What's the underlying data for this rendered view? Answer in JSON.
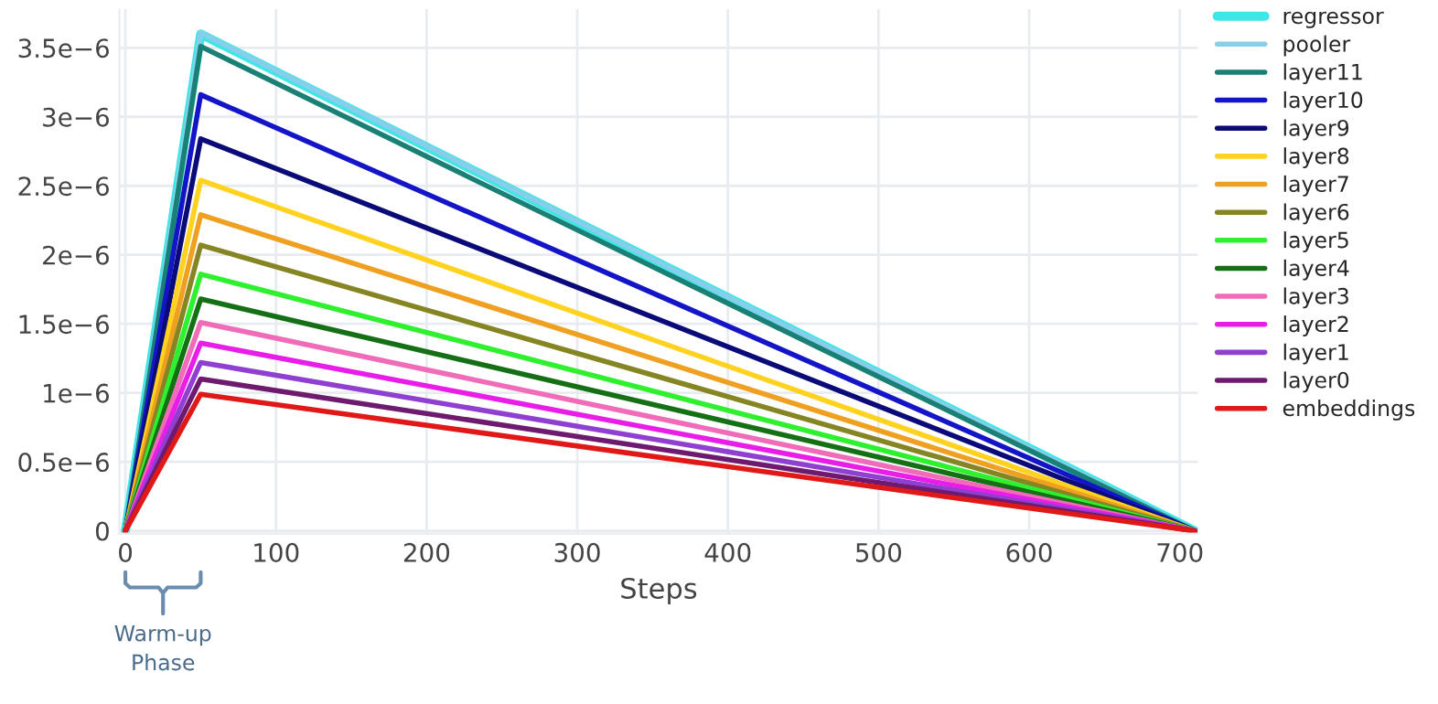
{
  "chart_data": {
    "type": "line",
    "xlabel": "Steps",
    "x": [
      0,
      50,
      710
    ],
    "xlim": [
      -4,
      712
    ],
    "xticks": [
      0,
      100,
      200,
      300,
      400,
      500,
      600,
      700
    ],
    "ylim": [
      -2e-08,
      3.78e-06
    ],
    "yticks": [
      0,
      {
        "value": 5e-07,
        "label": "0.5e−6"
      },
      {
        "value": 1e-06,
        "label": "1e−6"
      },
      {
        "value": 1.5e-06,
        "label": "1.5e−6"
      },
      {
        "value": 2e-06,
        "label": "2e−6"
      },
      {
        "value": 2.5e-06,
        "label": "2.5e−6"
      },
      {
        "value": 3e-06,
        "label": "3e−6"
      },
      {
        "value": 3.5e-06,
        "label": "3.5e−6"
      }
    ],
    "grid": true,
    "legend": "right",
    "marker": "none",
    "line_style": "solid",
    "annotations": [
      "Warm-up\nPhase"
    ],
    "series": [
      {
        "name": "regressor",
        "color": "#3ee6e6",
        "values": [
          0,
          3.6e-06,
          0
        ]
      },
      {
        "name": "pooler",
        "color": "#87ceeb",
        "values": [
          0,
          3.61e-06,
          0
        ]
      },
      {
        "name": "layer11",
        "color": "#1a7f74",
        "values": [
          0,
          3.51e-06,
          0
        ]
      },
      {
        "name": "layer10",
        "color": "#1515c8",
        "values": [
          0,
          3.16e-06,
          0
        ]
      },
      {
        "name": "layer9",
        "color": "#0a0a78",
        "values": [
          0,
          2.84e-06,
          0
        ]
      },
      {
        "name": "layer8",
        "color": "#ffd21f",
        "values": [
          0,
          2.54e-06,
          0
        ]
      },
      {
        "name": "layer7",
        "color": "#f0a020",
        "values": [
          0,
          2.29e-06,
          0
        ]
      },
      {
        "name": "layer6",
        "color": "#858524",
        "values": [
          0,
          2.07e-06,
          0
        ]
      },
      {
        "name": "layer5",
        "color": "#2ef02e",
        "values": [
          0,
          1.86e-06,
          0
        ]
      },
      {
        "name": "layer4",
        "color": "#157015",
        "values": [
          0,
          1.68e-06,
          0
        ]
      },
      {
        "name": "layer3",
        "color": "#f06cb8",
        "values": [
          0,
          1.51e-06,
          0
        ]
      },
      {
        "name": "layer2",
        "color": "#e81ee8",
        "values": [
          0,
          1.36e-06,
          0
        ]
      },
      {
        "name": "layer1",
        "color": "#9040d0",
        "values": [
          0,
          1.22e-06,
          0
        ]
      },
      {
        "name": "layer0",
        "color": "#6e1a6e",
        "values": [
          0,
          1.1e-06,
          0
        ]
      },
      {
        "name": "embeddings",
        "color": "#e01818",
        "values": [
          0,
          9.9e-07,
          0
        ]
      }
    ]
  }
}
